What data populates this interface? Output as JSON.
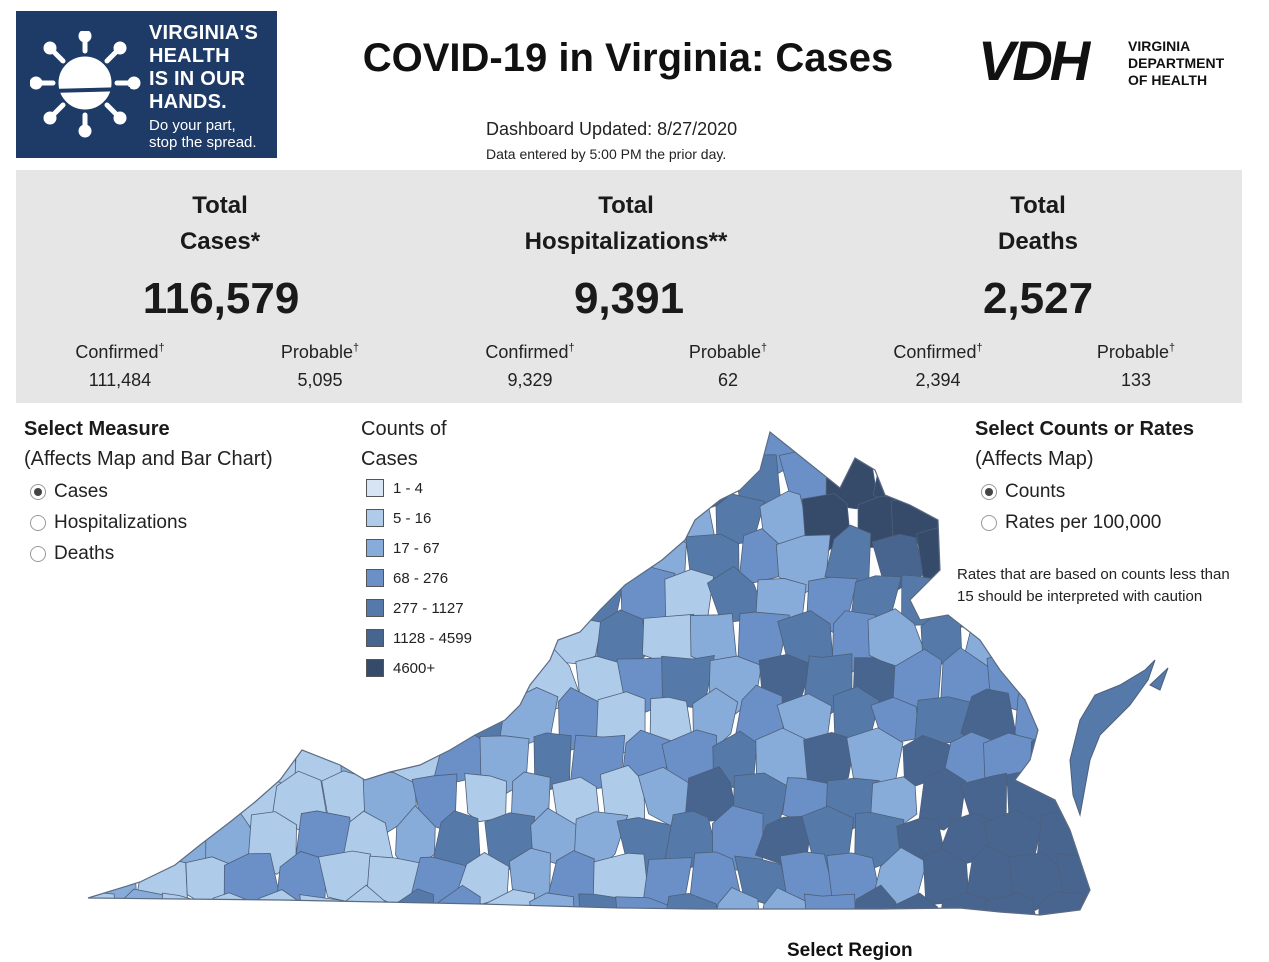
{
  "header": {
    "logo_left_lines": [
      "VIRGINIA'S",
      "HEALTH",
      "IS IN OUR",
      "HANDS."
    ],
    "logo_left_sub": [
      "Do your part,",
      "stop the spread."
    ],
    "title": "COVID-19 in Virginia: Cases",
    "vdh_mark": "VDH",
    "vdh_text": [
      "VIRGINIA",
      "DEPARTMENT",
      "OF HEALTH"
    ],
    "updated": "Dashboard Updated: 8/27/2020",
    "entered": "Data entered by 5:00 PM the prior day."
  },
  "stats": {
    "cases": {
      "label1": "Total",
      "label2": "Cases*",
      "value": "116,579",
      "confirmed_label": "Confirmed",
      "confirmed": "111,484",
      "probable_label": "Probable",
      "probable": "5,095"
    },
    "hosp": {
      "label1": "Total",
      "label2": "Hospitalizations**",
      "value": "9,391",
      "confirmed_label": "Confirmed",
      "confirmed": "9,329",
      "probable_label": "Probable",
      "probable": "62"
    },
    "deaths": {
      "label1": "Total",
      "label2": "Deaths",
      "value": "2,527",
      "confirmed_label": "Confirmed",
      "confirmed": "2,394",
      "probable_label": "Probable",
      "probable": "133"
    },
    "dagger": "†"
  },
  "measure": {
    "title": "Select Measure",
    "subtitle": "(Affects Map and Bar Chart)",
    "options": [
      {
        "label": "Cases",
        "selected": true
      },
      {
        "label": "Hospitalizations",
        "selected": false
      },
      {
        "label": "Deaths",
        "selected": false
      }
    ]
  },
  "legend": {
    "title1": "Counts of",
    "title2": "Cases",
    "items": [
      {
        "label": "1 - 4",
        "color": "#d6e4f3"
      },
      {
        "label": "5 - 16",
        "color": "#aecbea"
      },
      {
        "label": "17 - 67",
        "color": "#88acd9"
      },
      {
        "label": "68 - 276",
        "color": "#6a90c7"
      },
      {
        "label": "277 - 1127",
        "color": "#557aa9"
      },
      {
        "label": "1128 - 4599",
        "color": "#486590"
      },
      {
        "label": "4600+",
        "color": "#364a6a"
      }
    ]
  },
  "rates": {
    "title": "Select Counts or Rates",
    "subtitle": "(Affects Map)",
    "options": [
      {
        "label": "Counts",
        "selected": true
      },
      {
        "label": "Rates per 100,000",
        "selected": false
      }
    ],
    "note": "Rates that are based on counts less than 15 should be interpreted with caution"
  },
  "map": {
    "colors": [
      "#d6e4f3",
      "#aecbea",
      "#88acd9",
      "#6a90c7",
      "#557aa9",
      "#486590",
      "#364a6a"
    ]
  },
  "footer": {
    "region_title": "Select Region"
  }
}
